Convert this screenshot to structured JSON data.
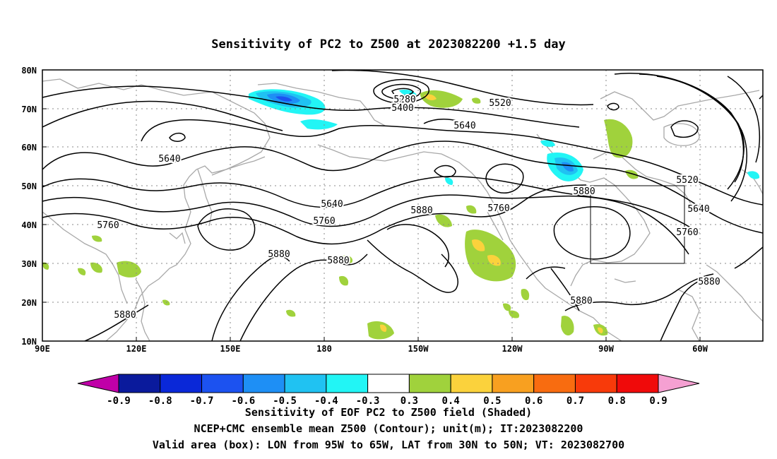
{
  "title": "Sensitivity of PC2 to Z500 at 2023082200 +1.5 day",
  "lat_labels": [
    "80N",
    "70N",
    "60N",
    "50N",
    "40N",
    "30N",
    "20N",
    "10N"
  ],
  "lon_labels": [
    "90E",
    "120E",
    "150E",
    "180",
    "150W",
    "120W",
    "90W",
    "60W"
  ],
  "contour_labels": [
    "5280",
    "5400",
    "5520",
    "5640",
    "5640",
    "5640",
    "5760",
    "5760",
    "5880",
    "5880",
    "5760",
    "5520",
    "5640",
    "5760",
    "5880",
    "5880",
    "5880",
    "5880"
  ],
  "colorbar": {
    "labels": [
      "-0.9",
      "-0.8",
      "-0.7",
      "-0.6",
      "-0.5",
      "-0.4",
      "-0.3",
      "0.3",
      "0.4",
      "0.5",
      "0.6",
      "0.7",
      "0.8",
      "0.9"
    ],
    "colors": [
      "#c000a8",
      "#0a1a9c",
      "#0a28d8",
      "#1c52f0",
      "#1e8ff5",
      "#20c2f2",
      "#22f5f5",
      "#ffffff",
      "#a0d23c",
      "#fbd23c",
      "#f8a020",
      "#f86c10",
      "#f83a0a",
      "#f00a0a",
      "#f5a0d2"
    ]
  },
  "caption": [
    "Sensitivity of EOF PC2 to Z500 field (Shaded)",
    "NCEP+CMC ensemble mean Z500 (Contour); unit(m); IT:2023082200",
    "Valid area (box): LON from 95W to 65W, LAT from 30N to 50N; VT: 2023082700"
  ]
}
